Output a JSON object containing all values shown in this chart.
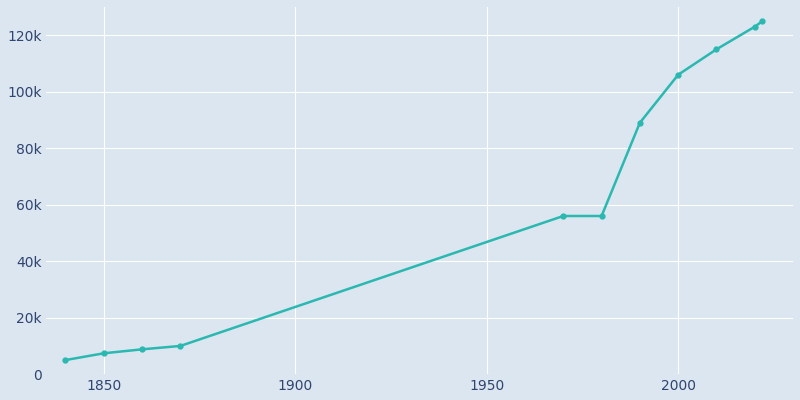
{
  "years": [
    1840,
    1850,
    1860,
    1870,
    1970,
    1980,
    1990,
    2000,
    2010,
    2020,
    2022
  ],
  "population": [
    5000,
    7400,
    8800,
    10000,
    56000,
    56000,
    89000,
    106000,
    115000,
    123000,
    125000
  ],
  "line_color": "#2ab8b0",
  "marker_color": "#2ab8b0",
  "bg_color": "#dce6f0",
  "grid_color": "#ffffff",
  "xlim": [
    1835,
    2030
  ],
  "ylim": [
    0,
    130000
  ],
  "ytick_step": 20000,
  "figure_width": 8.0,
  "figure_height": 4.0,
  "dpi": 100
}
